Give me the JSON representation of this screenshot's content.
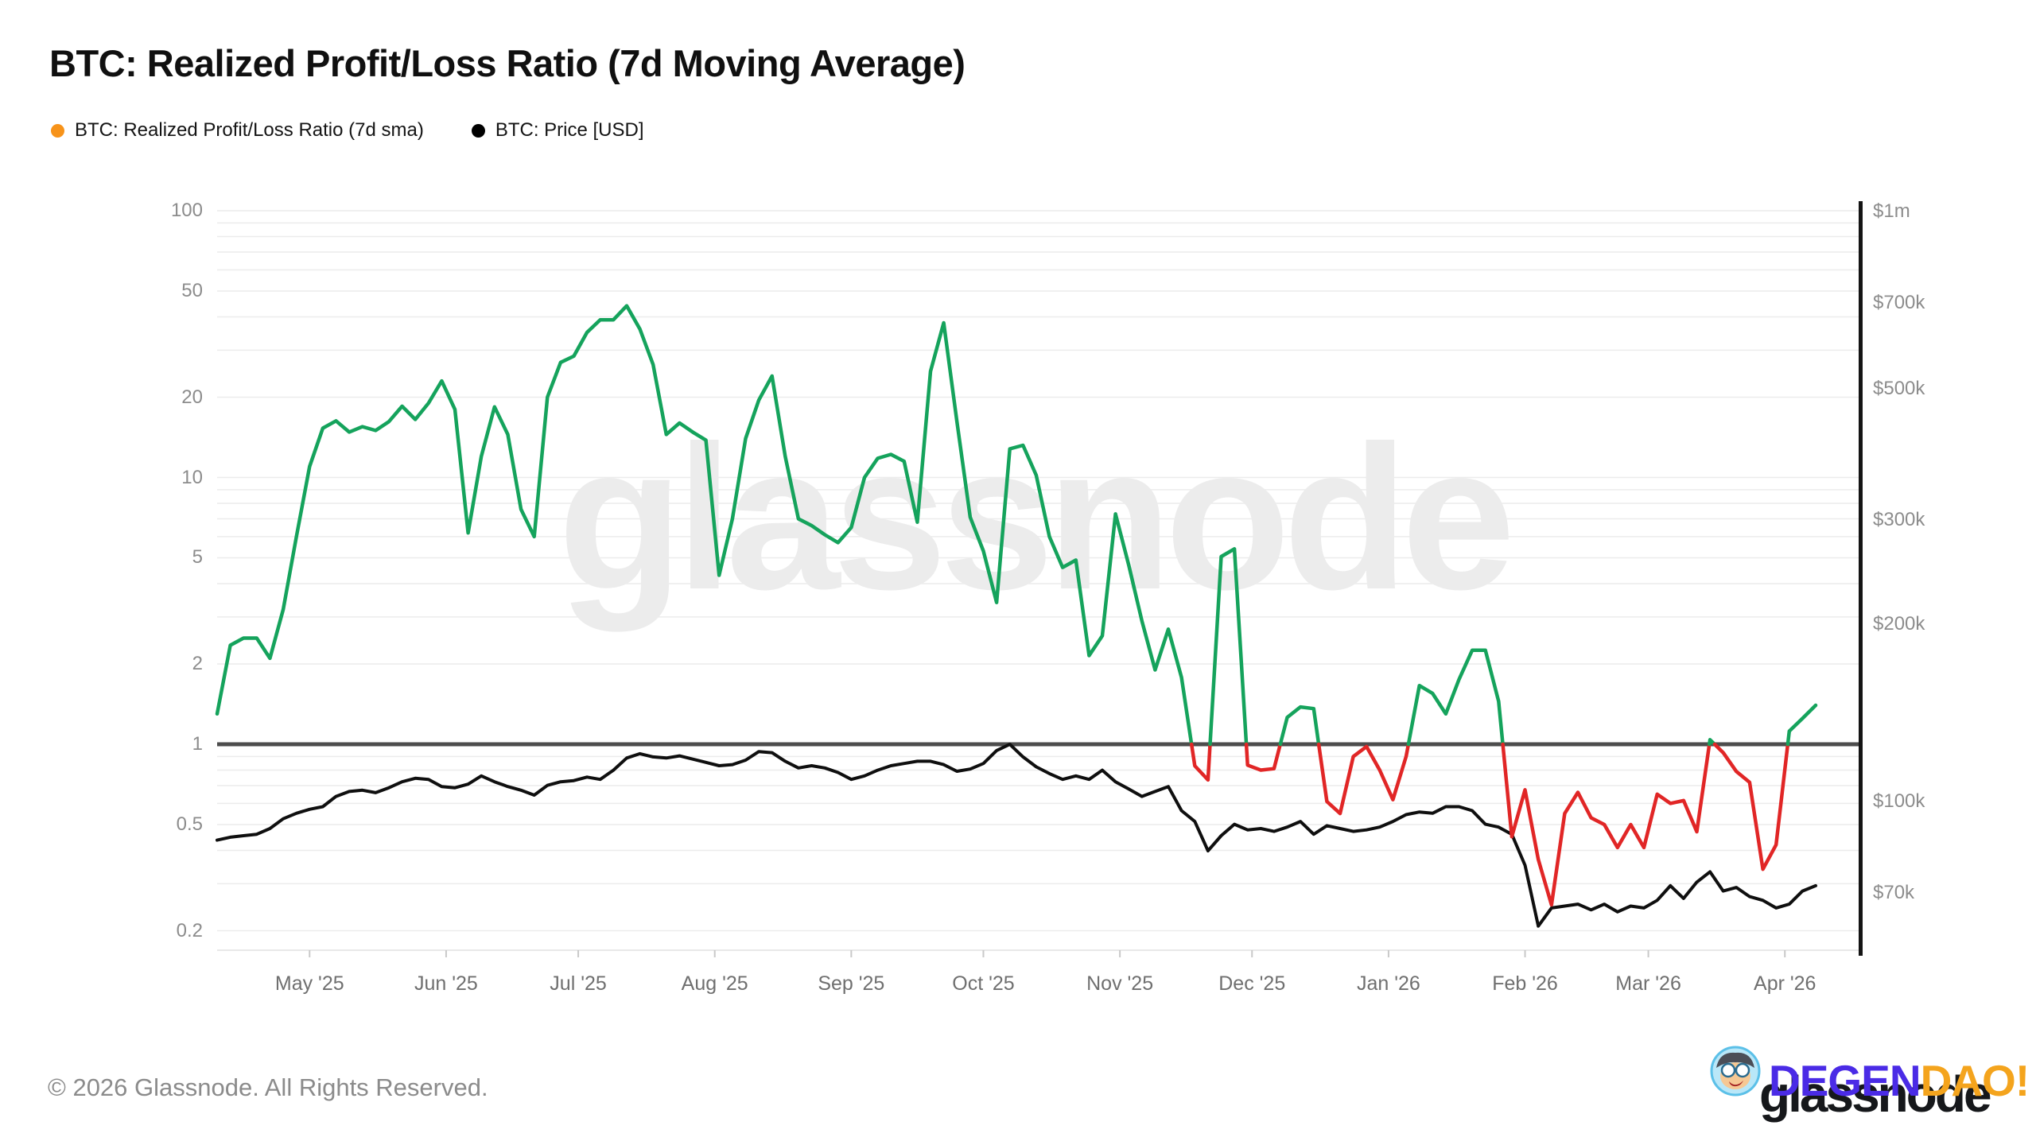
{
  "title": "BTC: Realized Profit/Loss Ratio (7d Moving Average)",
  "legend": [
    {
      "label": "BTC: Realized Profit/Loss Ratio (7d sma)",
      "color": "#f7931a"
    },
    {
      "label": "BTC: Price [USD]",
      "color": "#000000"
    }
  ],
  "watermark": "glassnode",
  "footer": {
    "copyright": "© 2026 Glassnode. All Rights Reserved."
  },
  "branding": {
    "wordmark": "glassnode",
    "overlay_degen": "DEGEN",
    "overlay_dao": "DAO!",
    "avatar_icon": "degen-dao-mascot"
  },
  "colors": {
    "ratio_above_1": "#15a35c",
    "ratio_below_1": "#e12626",
    "price_line": "#0f0f0f",
    "reference_line": "#4d4d4d",
    "gridline": "#ececec",
    "axis_bar": "#141414",
    "legend_ratio_dot": "#f7931a",
    "legend_price_dot": "#000000"
  },
  "chart_data": {
    "type": "line",
    "title": "BTC: Realized Profit/Loss Ratio (7d Moving Average)",
    "left_axis": {
      "scale": "log",
      "range": [
        0.2,
        100
      ],
      "ticks": [
        {
          "label": "100",
          "value": 100
        },
        {
          "label": "50",
          "value": 50
        },
        {
          "label": "20",
          "value": 20
        },
        {
          "label": "10",
          "value": 10
        },
        {
          "label": "5",
          "value": 5
        },
        {
          "label": "2",
          "value": 2
        },
        {
          "label": "1",
          "value": 1
        },
        {
          "label": "0.5",
          "value": 0.5
        },
        {
          "label": "0.2",
          "value": 0.2
        }
      ]
    },
    "right_axis": {
      "scale": "log",
      "unit": "USD",
      "ticks": [
        {
          "label": "$1m",
          "value_k": 1000
        },
        {
          "label": "$700k",
          "value_k": 700
        },
        {
          "label": "$500k",
          "value_k": 500
        },
        {
          "label": "$300k",
          "value_k": 300
        },
        {
          "label": "$200k",
          "value_k": 200
        },
        {
          "label": "$100k",
          "value_k": 100
        },
        {
          "label": "$70k",
          "value_k": 70
        }
      ]
    },
    "x_axis": {
      "ticks": [
        {
          "label": "May '25",
          "date": "2025-05-01"
        },
        {
          "label": "Jun '25",
          "date": "2025-06-01"
        },
        {
          "label": "Jul '25",
          "date": "2025-07-01"
        },
        {
          "label": "Aug '25",
          "date": "2025-08-01"
        },
        {
          "label": "Sep '25",
          "date": "2025-09-01"
        },
        {
          "label": "Oct '25",
          "date": "2025-10-01"
        },
        {
          "label": "Nov '25",
          "date": "2025-11-01"
        },
        {
          "label": "Dec '25",
          "date": "2025-12-01"
        },
        {
          "label": "Jan '26",
          "date": "2026-01-01"
        },
        {
          "label": "Feb '26",
          "date": "2026-02-01"
        },
        {
          "label": "Mar '26",
          "date": "2026-03-01"
        },
        {
          "label": "Apr '26",
          "date": "2026-04-01"
        }
      ]
    },
    "threshold": 1,
    "dates": [
      "2025-04-10",
      "2025-04-13",
      "2025-04-16",
      "2025-04-19",
      "2025-04-22",
      "2025-04-25",
      "2025-04-28",
      "2025-05-01",
      "2025-05-04",
      "2025-05-07",
      "2025-05-10",
      "2025-05-13",
      "2025-05-16",
      "2025-05-19",
      "2025-05-22",
      "2025-05-25",
      "2025-05-28",
      "2025-05-31",
      "2025-06-03",
      "2025-06-06",
      "2025-06-09",
      "2025-06-12",
      "2025-06-15",
      "2025-06-18",
      "2025-06-21",
      "2025-06-24",
      "2025-06-27",
      "2025-06-30",
      "2025-07-03",
      "2025-07-06",
      "2025-07-09",
      "2025-07-12",
      "2025-07-15",
      "2025-07-18",
      "2025-07-21",
      "2025-07-24",
      "2025-07-27",
      "2025-07-30",
      "2025-08-02",
      "2025-08-05",
      "2025-08-08",
      "2025-08-11",
      "2025-08-14",
      "2025-08-17",
      "2025-08-20",
      "2025-08-23",
      "2025-08-26",
      "2025-08-29",
      "2025-09-01",
      "2025-09-04",
      "2025-09-07",
      "2025-09-10",
      "2025-09-13",
      "2025-09-16",
      "2025-09-19",
      "2025-09-22",
      "2025-09-25",
      "2025-09-28",
      "2025-10-01",
      "2025-10-04",
      "2025-10-07",
      "2025-10-10",
      "2025-10-13",
      "2025-10-16",
      "2025-10-19",
      "2025-10-22",
      "2025-10-25",
      "2025-10-28",
      "2025-10-31",
      "2025-11-03",
      "2025-11-06",
      "2025-11-09",
      "2025-11-12",
      "2025-11-15",
      "2025-11-18",
      "2025-11-21",
      "2025-11-24",
      "2025-11-27",
      "2025-11-30",
      "2025-12-03",
      "2025-12-06",
      "2025-12-09",
      "2025-12-12",
      "2025-12-15",
      "2025-12-18",
      "2025-12-21",
      "2025-12-24",
      "2025-12-27",
      "2025-12-30",
      "2026-01-02",
      "2026-01-05",
      "2026-01-08",
      "2026-01-11",
      "2026-01-14",
      "2026-01-17",
      "2026-01-20",
      "2026-01-23",
      "2026-01-26",
      "2026-01-29",
      "2026-02-01",
      "2026-02-04",
      "2026-02-07",
      "2026-02-10",
      "2026-02-13",
      "2026-02-16",
      "2026-02-19",
      "2026-02-22",
      "2026-02-25",
      "2026-02-28",
      "2026-03-03",
      "2026-03-06",
      "2026-03-09",
      "2026-03-12",
      "2026-03-15",
      "2026-03-18",
      "2026-03-21",
      "2026-03-24",
      "2026-03-27",
      "2026-03-30",
      "2026-04-02",
      "2026-04-05",
      "2026-04-08"
    ],
    "series": [
      {
        "name": "BTC: Realized Profit/Loss Ratio (7d sma)",
        "axis": "left",
        "color_above": "#15a35c",
        "color_below": "#e12626",
        "values": [
          1.3,
          2.35,
          2.5,
          2.5,
          2.1,
          3.2,
          6.0,
          11.0,
          15.3,
          16.3,
          14.8,
          15.5,
          15.0,
          16.2,
          18.5,
          16.5,
          19.0,
          23.0,
          18.0,
          6.2,
          12.0,
          18.4,
          14.5,
          7.6,
          6.0,
          20.0,
          27.0,
          28.5,
          35.0,
          39.0,
          39.0,
          44.0,
          36.0,
          26.5,
          14.5,
          16.0,
          14.8,
          13.8,
          4.3,
          7.0,
          14.0,
          19.5,
          24.0,
          12.0,
          7.0,
          6.6,
          6.1,
          5.7,
          6.5,
          10.0,
          11.8,
          12.2,
          11.5,
          6.8,
          25.0,
          38.0,
          16.2,
          7.1,
          5.3,
          3.4,
          12.8,
          13.2,
          10.2,
          6.0,
          4.6,
          4.9,
          2.15,
          2.55,
          7.3,
          4.7,
          2.9,
          1.9,
          2.7,
          1.78,
          0.83,
          0.735,
          5.05,
          5.4,
          0.835,
          0.8,
          0.81,
          1.26,
          1.38,
          1.36,
          0.61,
          0.55,
          0.9,
          0.98,
          0.8,
          0.62,
          0.9,
          1.66,
          1.55,
          1.3,
          1.75,
          2.25,
          2.25,
          1.45,
          0.45,
          0.675,
          0.37,
          0.25,
          0.55,
          0.66,
          0.53,
          0.5,
          0.41,
          0.5,
          0.41,
          0.65,
          0.6,
          0.615,
          0.47,
          1.04,
          0.93,
          0.79,
          0.72,
          0.34,
          0.42,
          1.12,
          1.25,
          1.4
        ]
      },
      {
        "name": "BTC: Price [USD]",
        "axis": "right",
        "color": "#0f0f0f",
        "unit": "USD thousands",
        "values": [
          86,
          87,
          87.5,
          88,
          90,
          93.5,
          95.5,
          97,
          98,
          102,
          104,
          104.5,
          103.5,
          105.5,
          108,
          109.5,
          109,
          106,
          105.5,
          107,
          110.5,
          108,
          106,
          104.5,
          102.5,
          106.5,
          108,
          108.5,
          110,
          109,
          113,
          118.5,
          120.5,
          119,
          118.5,
          119.5,
          118,
          116.5,
          115,
          115.5,
          117.5,
          121.5,
          121,
          117,
          114,
          115,
          114,
          112,
          109,
          110.5,
          113,
          115,
          116,
          117,
          117,
          115.5,
          112.5,
          113.5,
          116,
          122,
          125,
          119,
          114.5,
          111.5,
          109,
          110.5,
          109,
          113,
          108,
          105,
          102,
          104,
          106,
          96.5,
          92.5,
          82.5,
          87.5,
          91.5,
          89.5,
          90,
          89,
          90.5,
          92.5,
          88,
          91,
          90,
          89,
          89.5,
          90.5,
          92.5,
          95,
          96,
          95.5,
          98,
          98,
          96.5,
          91.5,
          90.5,
          88,
          78,
          61.5,
          66,
          66.5,
          67,
          65.5,
          67,
          65,
          66.5,
          66,
          68,
          72,
          68.5,
          73,
          76,
          70.5,
          71.5,
          69,
          68,
          66,
          67,
          70.5,
          72
        ]
      }
    ]
  }
}
